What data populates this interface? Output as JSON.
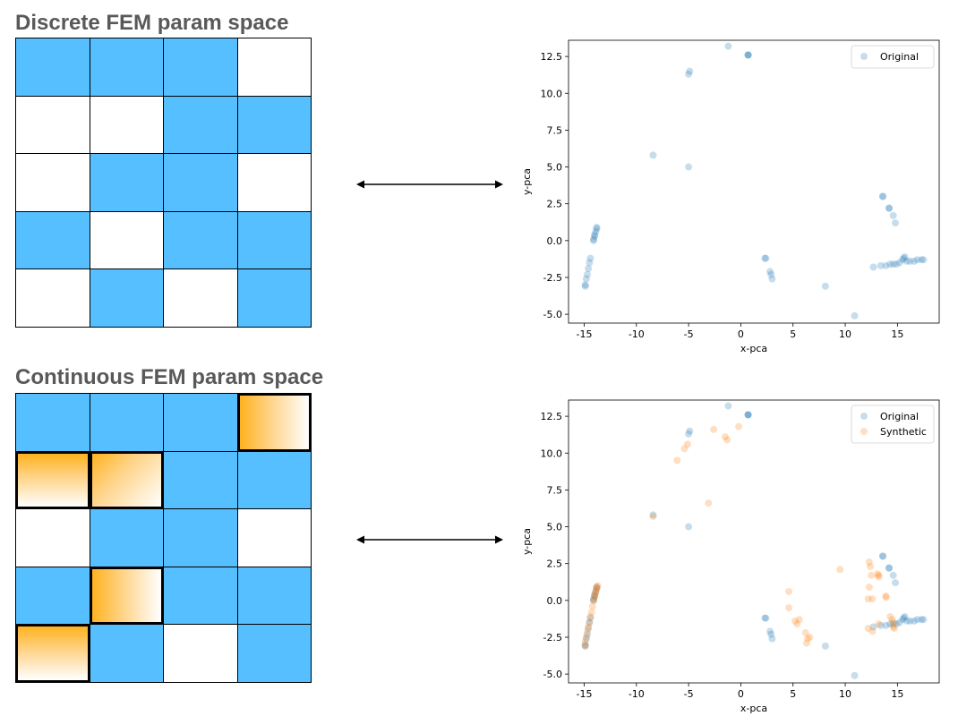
{
  "top_panel": {
    "title": "Discrete FEM param space",
    "grid": [
      [
        "b",
        "b",
        "b",
        "w"
      ],
      [
        "w",
        "w",
        "b",
        "b"
      ],
      [
        "w",
        "b",
        "b",
        "w"
      ],
      [
        "b",
        "w",
        "b",
        "b"
      ],
      [
        "w",
        "b",
        "w",
        "b"
      ]
    ]
  },
  "bottom_panel": {
    "title": "Continuous FEM param space",
    "grid": [
      [
        "b",
        "b",
        "b",
        "o1"
      ],
      [
        "o2",
        "o3",
        "b",
        "b"
      ],
      [
        "w",
        "b",
        "b",
        "w"
      ],
      [
        "b",
        "o1",
        "b",
        "b"
      ],
      [
        "o2",
        "b",
        "w",
        "b"
      ]
    ]
  },
  "colors": {
    "cell_blue": "#55bfff",
    "cell_orange": "#ffb21f",
    "original": "#1f77b4",
    "synthetic": "#ff7f0e",
    "title_gray": "#595959"
  },
  "chart_data": [
    {
      "type": "scatter",
      "title": "",
      "xlabel": "x-pca",
      "ylabel": "y-pca",
      "xlim": [
        -16.5,
        19
      ],
      "ylim": [
        -5.6,
        13.6
      ],
      "xticks": [
        -15,
        -10,
        -5,
        0,
        5,
        10,
        15
      ],
      "yticks": [
        -5.0,
        -2.5,
        0.0,
        2.5,
        5.0,
        7.5,
        10.0,
        12.5
      ],
      "legend": "top-right",
      "series": [
        {
          "name": "Original",
          "color": "#1f77b4",
          "alpha": 0.25,
          "points": [
            [
              -1.2,
              13.2
            ],
            [
              0.7,
              12.6
            ],
            [
              0.7,
              12.6
            ],
            [
              0.7,
              12.6
            ],
            [
              -4.9,
              11.5
            ],
            [
              -5.0,
              11.3
            ],
            [
              -8.4,
              5.8
            ],
            [
              -5.0,
              5.0
            ],
            [
              -13.8,
              0.9
            ],
            [
              -13.8,
              0.8
            ],
            [
              -13.9,
              0.6
            ],
            [
              -14.0,
              0.4
            ],
            [
              -14.1,
              0.1
            ],
            [
              -14.1,
              0.0
            ],
            [
              -14.0,
              0.3
            ],
            [
              -14.4,
              -1.2
            ],
            [
              -14.5,
              -1.5
            ],
            [
              -14.6,
              -1.9
            ],
            [
              -14.7,
              -2.3
            ],
            [
              -14.8,
              -2.6
            ],
            [
              -14.9,
              -3.0
            ],
            [
              -14.9,
              -3.1
            ],
            [
              13.6,
              3.0
            ],
            [
              13.6,
              3.0
            ],
            [
              14.2,
              2.2
            ],
            [
              14.2,
              2.2
            ],
            [
              14.6,
              1.7
            ],
            [
              14.8,
              1.2
            ],
            [
              2.3,
              -1.2
            ],
            [
              2.4,
              -1.2
            ],
            [
              2.8,
              -2.1
            ],
            [
              2.9,
              -2.3
            ],
            [
              3.0,
              -2.6
            ],
            [
              8.1,
              -3.1
            ],
            [
              10.9,
              -5.1
            ],
            [
              12.7,
              -1.8
            ],
            [
              13.4,
              -1.7
            ],
            [
              13.9,
              -1.7
            ],
            [
              14.3,
              -1.6
            ],
            [
              14.6,
              -1.6
            ],
            [
              14.9,
              -1.6
            ],
            [
              15.2,
              -1.5
            ],
            [
              15.5,
              -1.3
            ],
            [
              15.6,
              -1.2
            ],
            [
              15.7,
              -1.1
            ],
            [
              15.9,
              -1.4
            ],
            [
              16.2,
              -1.4
            ],
            [
              16.6,
              -1.4
            ],
            [
              16.9,
              -1.3
            ],
            [
              17.3,
              -1.3
            ],
            [
              17.5,
              -1.3
            ]
          ]
        }
      ]
    },
    {
      "type": "scatter",
      "title": "",
      "xlabel": "x-pca",
      "ylabel": "y-pca",
      "xlim": [
        -16.5,
        19
      ],
      "ylim": [
        -5.6,
        13.6
      ],
      "xticks": [
        -15,
        -10,
        -5,
        0,
        5,
        10,
        15
      ],
      "yticks": [
        -5.0,
        -2.5,
        0.0,
        2.5,
        5.0,
        7.5,
        10.0,
        12.5
      ],
      "legend": "top-right",
      "series": [
        {
          "name": "Original",
          "color": "#1f77b4",
          "alpha": 0.25,
          "points": [
            [
              -1.2,
              13.2
            ],
            [
              0.7,
              12.6
            ],
            [
              0.7,
              12.6
            ],
            [
              0.7,
              12.6
            ],
            [
              -4.9,
              11.5
            ],
            [
              -5.0,
              11.3
            ],
            [
              -8.4,
              5.8
            ],
            [
              -5.0,
              5.0
            ],
            [
              -13.8,
              0.9
            ],
            [
              -13.8,
              0.8
            ],
            [
              -13.9,
              0.6
            ],
            [
              -14.0,
              0.4
            ],
            [
              -14.1,
              0.1
            ],
            [
              -14.1,
              0.0
            ],
            [
              -14.0,
              0.3
            ],
            [
              -14.4,
              -1.2
            ],
            [
              -14.5,
              -1.5
            ],
            [
              -14.6,
              -1.9
            ],
            [
              -14.7,
              -2.3
            ],
            [
              -14.8,
              -2.6
            ],
            [
              -14.9,
              -3.0
            ],
            [
              -14.9,
              -3.1
            ],
            [
              13.6,
              3.0
            ],
            [
              13.6,
              3.0
            ],
            [
              14.2,
              2.2
            ],
            [
              14.2,
              2.2
            ],
            [
              14.6,
              1.7
            ],
            [
              14.8,
              1.2
            ],
            [
              2.3,
              -1.2
            ],
            [
              2.4,
              -1.2
            ],
            [
              2.8,
              -2.1
            ],
            [
              2.9,
              -2.3
            ],
            [
              3.0,
              -2.6
            ],
            [
              8.1,
              -3.1
            ],
            [
              10.9,
              -5.1
            ],
            [
              12.7,
              -1.8
            ],
            [
              13.4,
              -1.7
            ],
            [
              13.9,
              -1.7
            ],
            [
              14.3,
              -1.6
            ],
            [
              14.6,
              -1.6
            ],
            [
              14.9,
              -1.6
            ],
            [
              15.2,
              -1.5
            ],
            [
              15.5,
              -1.3
            ],
            [
              15.6,
              -1.2
            ],
            [
              15.7,
              -1.1
            ],
            [
              15.9,
              -1.4
            ],
            [
              16.2,
              -1.4
            ],
            [
              16.6,
              -1.4
            ],
            [
              16.9,
              -1.3
            ],
            [
              17.3,
              -1.3
            ],
            [
              17.5,
              -1.3
            ]
          ]
        },
        {
          "name": "Synthetic",
          "color": "#ff7f0e",
          "alpha": 0.25,
          "points": [
            [
              -5.4,
              10.3
            ],
            [
              -5.1,
              10.6
            ],
            [
              -6.1,
              9.5
            ],
            [
              -2.6,
              11.6
            ],
            [
              -1.5,
              11.1
            ],
            [
              -1.3,
              10.9
            ],
            [
              -0.2,
              11.8
            ],
            [
              -3.1,
              6.6
            ],
            [
              -8.4,
              5.7
            ],
            [
              -13.7,
              1.0
            ],
            [
              -13.8,
              0.9
            ],
            [
              -13.8,
              0.8
            ],
            [
              -13.9,
              0.6
            ],
            [
              -13.9,
              0.5
            ],
            [
              -14.0,
              0.3
            ],
            [
              -14.0,
              0.2
            ],
            [
              -14.1,
              0.0
            ],
            [
              -14.2,
              -0.4
            ],
            [
              -14.3,
              -0.8
            ],
            [
              -14.4,
              -1.1
            ],
            [
              -14.5,
              -1.5
            ],
            [
              -14.6,
              -1.8
            ],
            [
              -14.7,
              -2.1
            ],
            [
              -14.8,
              -2.5
            ],
            [
              -14.9,
              -2.8
            ],
            [
              -14.9,
              -3.1
            ],
            [
              4.6,
              0.6
            ],
            [
              4.6,
              -0.5
            ],
            [
              5.2,
              -1.4
            ],
            [
              5.6,
              -1.3
            ],
            [
              5.4,
              -1.6
            ],
            [
              6.2,
              -2.2
            ],
            [
              6.4,
              -2.6
            ],
            [
              6.6,
              -2.5
            ],
            [
              6.3,
              -2.9
            ],
            [
              9.5,
              2.1
            ],
            [
              12.3,
              2.6
            ],
            [
              12.4,
              2.3
            ],
            [
              12.5,
              1.7
            ],
            [
              12.3,
              0.9
            ],
            [
              12.2,
              0.1
            ],
            [
              12.6,
              0.1
            ],
            [
              13.1,
              1.8
            ],
            [
              13.2,
              1.7
            ],
            [
              13.2,
              1.6
            ],
            [
              13.9,
              0.3
            ],
            [
              13.9,
              0.2
            ],
            [
              12.2,
              -1.9
            ],
            [
              12.6,
              -2.1
            ],
            [
              13.2,
              -1.6
            ],
            [
              14.3,
              -1.1
            ],
            [
              14.5,
              -1.3
            ],
            [
              14.6,
              -1.5
            ],
            [
              14.6,
              -1.8
            ],
            [
              14.7,
              -1.9
            ]
          ]
        }
      ]
    }
  ]
}
